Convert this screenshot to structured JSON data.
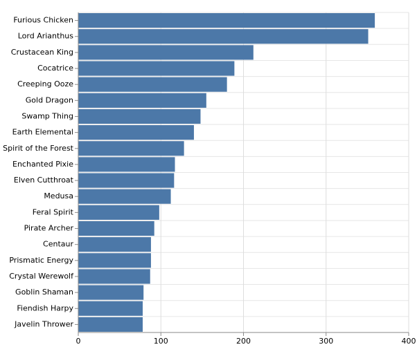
{
  "chart_data": {
    "type": "bar",
    "orientation": "horizontal",
    "categories": [
      "Furious Chicken",
      "Lord Arianthus",
      "Crustacean King",
      "Cocatrice",
      "Creeping Ooze",
      "Gold Dragon",
      "Swamp Thing",
      "Earth Elemental",
      "Spirit of the Forest",
      "Enchanted Pixie",
      "Elven Cutthroat",
      "Medusa",
      "Feral Spirit",
      "Pirate Archer",
      "Centaur",
      "Prismatic Energy",
      "Crystal Werewolf",
      "Goblin Shaman",
      "Fiendish Harpy",
      "Javelin Thrower"
    ],
    "values": [
      359,
      351,
      212,
      189,
      180,
      155,
      148,
      140,
      128,
      117,
      116,
      112,
      98,
      92,
      88,
      88,
      87,
      79,
      78,
      78
    ],
    "color": "#4c78a8",
    "xlim": [
      0,
      400
    ],
    "xticks": [
      0,
      100,
      200,
      300,
      400
    ],
    "grid": true
  }
}
